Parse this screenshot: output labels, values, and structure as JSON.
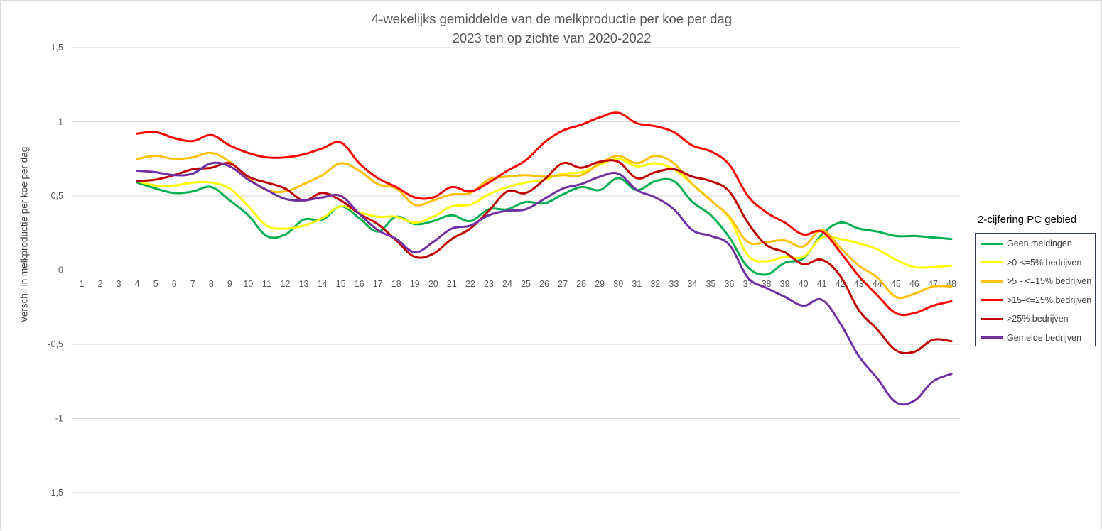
{
  "chart_data": {
    "type": "line",
    "title": "4-wekelijks gemiddelde van de melkproductie per koe per dag",
    "subtitle": "2023 ten op zichte van 2020-2022",
    "xlabel": "",
    "ylabel": "Verschil in melkproductie per koe per dag",
    "x": [
      1,
      2,
      3,
      4,
      5,
      6,
      7,
      8,
      9,
      10,
      11,
      12,
      13,
      14,
      15,
      16,
      17,
      18,
      19,
      20,
      21,
      22,
      23,
      24,
      25,
      26,
      27,
      28,
      29,
      30,
      31,
      32,
      33,
      34,
      35,
      36,
      37,
      38,
      39,
      40,
      41,
      42,
      43,
      44,
      45,
      46,
      47,
      48
    ],
    "ylim": [
      -1.5,
      1.5
    ],
    "yticks": [
      1.5,
      1,
      0.5,
      0,
      -0.5,
      -1,
      -1.5
    ],
    "ytick_labels": [
      "1,5",
      "1",
      "0,5",
      "0",
      "-0,5",
      "-1",
      "-1,5"
    ],
    "grid": true,
    "legend_title": "2-cijfering PC gebied",
    "legend_position": "right",
    "series": [
      {
        "name": "Geen meldingen",
        "color": "#00b050",
        "values": [
          null,
          null,
          null,
          0.59,
          0.55,
          0.52,
          0.53,
          0.56,
          0.47,
          0.37,
          0.23,
          0.24,
          0.34,
          0.34,
          0.43,
          0.35,
          0.26,
          0.36,
          0.31,
          0.33,
          0.37,
          0.33,
          0.41,
          0.41,
          0.46,
          0.45,
          0.51,
          0.56,
          0.54,
          0.62,
          0.54,
          0.6,
          0.6,
          0.46,
          0.37,
          0.22,
          0.02,
          -0.03,
          0.05,
          0.08,
          0.24,
          0.32,
          0.28,
          0.26,
          0.23,
          0.23,
          0.22,
          0.21
        ]
      },
      {
        "name": ">0-<=5% bedrijven",
        "color": "#ffff00",
        "values": [
          null,
          null,
          null,
          0.6,
          0.57,
          0.57,
          0.59,
          0.59,
          0.55,
          0.43,
          0.3,
          0.28,
          0.3,
          0.35,
          0.43,
          0.39,
          0.36,
          0.36,
          0.32,
          0.36,
          0.43,
          0.44,
          0.51,
          0.56,
          0.59,
          0.61,
          0.65,
          0.66,
          0.71,
          0.75,
          0.7,
          0.72,
          0.68,
          0.58,
          0.47,
          0.35,
          0.1,
          0.06,
          0.09,
          0.09,
          0.22,
          0.21,
          0.18,
          0.14,
          0.07,
          0.02,
          0.02,
          0.03
        ]
      },
      {
        "name": ">5 - <=15% bedrijven",
        "color": "#ffc000",
        "values": [
          null,
          null,
          null,
          0.75,
          0.77,
          0.75,
          0.76,
          0.79,
          0.73,
          0.62,
          0.54,
          0.53,
          0.58,
          0.64,
          0.72,
          0.67,
          0.58,
          0.55,
          0.44,
          0.47,
          0.51,
          0.52,
          0.61,
          0.63,
          0.64,
          0.63,
          0.64,
          0.64,
          0.72,
          0.77,
          0.72,
          0.77,
          0.72,
          0.58,
          0.47,
          0.36,
          0.19,
          0.19,
          0.2,
          0.16,
          0.27,
          0.15,
          0.03,
          -0.05,
          -0.18,
          -0.16,
          -0.11,
          -0.11
        ]
      },
      {
        "name": ">15-<=25% bedrijven",
        "color": "#ff0000",
        "values": [
          null,
          null,
          null,
          0.92,
          0.93,
          0.89,
          0.87,
          0.91,
          0.84,
          0.79,
          0.76,
          0.76,
          0.78,
          0.82,
          0.86,
          0.72,
          0.62,
          0.56,
          0.49,
          0.49,
          0.56,
          0.53,
          0.59,
          0.67,
          0.74,
          0.86,
          0.94,
          0.98,
          1.03,
          1.06,
          0.99,
          0.97,
          0.93,
          0.84,
          0.8,
          0.71,
          0.5,
          0.39,
          0.32,
          0.24,
          0.26,
          0.12,
          -0.04,
          -0.17,
          -0.29,
          -0.29,
          -0.24,
          -0.21
        ]
      },
      {
        "name": ">25% bedrijven",
        "color": "#c00000",
        "values": [
          null,
          null,
          null,
          0.6,
          0.61,
          0.64,
          0.68,
          0.69,
          0.72,
          0.63,
          0.59,
          0.55,
          0.47,
          0.52,
          0.47,
          0.38,
          0.31,
          0.2,
          0.09,
          0.11,
          0.21,
          0.28,
          0.4,
          0.53,
          0.52,
          0.61,
          0.72,
          0.69,
          0.73,
          0.73,
          0.62,
          0.66,
          0.68,
          0.63,
          0.6,
          0.53,
          0.32,
          0.17,
          0.12,
          0.04,
          0.07,
          -0.04,
          -0.27,
          -0.4,
          -0.54,
          -0.55,
          -0.47,
          -0.48
        ]
      },
      {
        "name": "Gemelde bedrijven",
        "color": "#7030a0",
        "values": [
          null,
          null,
          null,
          0.67,
          0.66,
          0.64,
          0.65,
          0.72,
          0.7,
          0.61,
          0.54,
          0.48,
          0.47,
          0.49,
          0.5,
          0.38,
          0.27,
          0.21,
          0.12,
          0.19,
          0.28,
          0.3,
          0.37,
          0.4,
          0.41,
          0.48,
          0.55,
          0.58,
          0.63,
          0.65,
          0.54,
          0.49,
          0.41,
          0.27,
          0.23,
          0.17,
          -0.05,
          -0.12,
          -0.18,
          -0.24,
          -0.2,
          -0.36,
          -0.58,
          -0.73,
          -0.89,
          -0.88,
          -0.75,
          -0.7
        ]
      }
    ]
  }
}
